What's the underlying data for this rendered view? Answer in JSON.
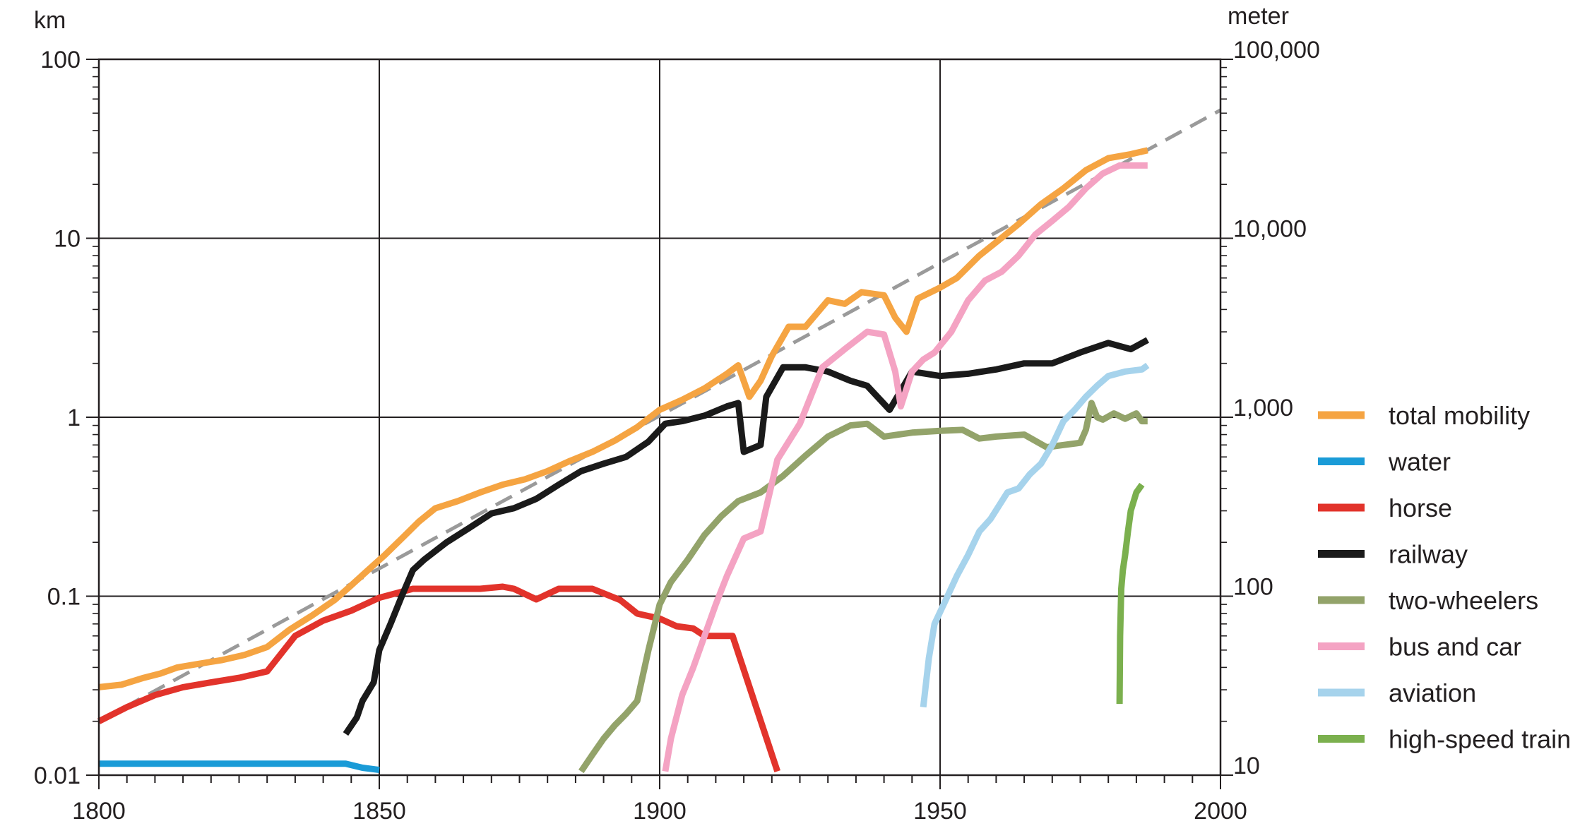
{
  "chart_data": {
    "type": "line",
    "xlim": [
      1800,
      2000
    ],
    "ylim": [
      0.01,
      100
    ],
    "y_scale": "log",
    "grid": true,
    "legend_position": "right",
    "left_axis_unit": "km",
    "right_axis_unit": "meter",
    "x_ticks": [
      1800,
      1850,
      1900,
      1950,
      2000
    ],
    "x_tick_labels": [
      "1800",
      "1850",
      "1900",
      "1950",
      "2000"
    ],
    "y_ticks": [
      0.01,
      0.1,
      1,
      10,
      100
    ],
    "y_tick_labels": [
      "0.01",
      "0.1",
      "1",
      "10",
      "100"
    ],
    "right_ticks": [
      10,
      100,
      1000,
      10000,
      100000
    ],
    "right_tick_labels": [
      "10",
      "100",
      "1,000",
      "10,000",
      "100,000"
    ],
    "trend": {
      "color": "#9a9a9a",
      "x": [
        1800,
        2000
      ],
      "y": [
        0.02,
        52
      ]
    },
    "series": [
      {
        "name": "total mobility",
        "color": "#f5a442",
        "x": [
          1800,
          1804,
          1808,
          1811,
          1814,
          1818,
          1822,
          1826,
          1830,
          1834,
          1838,
          1842,
          1845,
          1848,
          1851,
          1854,
          1857,
          1860,
          1864,
          1868,
          1872,
          1876,
          1880,
          1884,
          1888,
          1892,
          1896,
          1900,
          1904,
          1908,
          1912,
          1914,
          1916,
          1918,
          1920,
          1923,
          1926,
          1930,
          1933,
          1936,
          1940,
          1942,
          1944,
          1946,
          1950,
          1953,
          1957,
          1960,
          1964,
          1968,
          1972,
          1976,
          1980,
          1984,
          1987
        ],
        "y": [
          0.031,
          0.032,
          0.035,
          0.037,
          0.04,
          0.042,
          0.044,
          0.047,
          0.052,
          0.065,
          0.078,
          0.095,
          0.115,
          0.14,
          0.17,
          0.21,
          0.26,
          0.31,
          0.34,
          0.38,
          0.42,
          0.45,
          0.5,
          0.57,
          0.64,
          0.74,
          0.88,
          1.1,
          1.25,
          1.45,
          1.75,
          1.95,
          1.3,
          1.6,
          2.2,
          3.2,
          3.2,
          4.5,
          4.3,
          5.0,
          4.8,
          3.6,
          3.0,
          4.6,
          5.3,
          6.0,
          8.0,
          9.5,
          12.0,
          15.5,
          19.0,
          24.0,
          28.0,
          29.5,
          31.0
        ]
      },
      {
        "name": "water",
        "color": "#1a9bd7",
        "x": [
          1800,
          1810,
          1820,
          1830,
          1840,
          1844,
          1847,
          1850
        ],
        "y": [
          0.0116,
          0.0116,
          0.0116,
          0.0116,
          0.0116,
          0.0116,
          0.011,
          0.0107
        ]
      },
      {
        "name": "horse",
        "color": "#e2332b",
        "x": [
          1800,
          1805,
          1810,
          1815,
          1820,
          1825,
          1830,
          1835,
          1840,
          1845,
          1850,
          1856,
          1862,
          1868,
          1872,
          1874,
          1878,
          1882,
          1888,
          1893,
          1896,
          1900,
          1903,
          1906,
          1908,
          1913,
          1921
        ],
        "y": [
          0.02,
          0.024,
          0.028,
          0.031,
          0.033,
          0.035,
          0.038,
          0.06,
          0.073,
          0.083,
          0.098,
          0.11,
          0.11,
          0.11,
          0.113,
          0.11,
          0.096,
          0.11,
          0.11,
          0.095,
          0.08,
          0.075,
          0.068,
          0.066,
          0.06,
          0.06,
          0.0105
        ]
      },
      {
        "name": "railway",
        "color": "#1a1a1a",
        "x": [
          1844,
          1846,
          1847,
          1849,
          1850,
          1852,
          1854,
          1856,
          1858,
          1862,
          1866,
          1870,
          1874,
          1878,
          1882,
          1886,
          1890,
          1894,
          1898,
          1901,
          1904,
          1908,
          1912,
          1914,
          1915,
          1918,
          1919,
          1922,
          1926,
          1930,
          1934,
          1937,
          1941,
          1945,
          1950,
          1955,
          1960,
          1965,
          1970,
          1975,
          1980,
          1984,
          1987
        ],
        "y": [
          0.017,
          0.021,
          0.026,
          0.033,
          0.05,
          0.07,
          0.1,
          0.14,
          0.16,
          0.2,
          0.24,
          0.29,
          0.31,
          0.35,
          0.42,
          0.5,
          0.55,
          0.6,
          0.73,
          0.92,
          0.95,
          1.02,
          1.15,
          1.2,
          0.64,
          0.7,
          1.3,
          1.9,
          1.9,
          1.8,
          1.6,
          1.5,
          1.1,
          1.8,
          1.7,
          1.75,
          1.85,
          2.0,
          2.0,
          2.3,
          2.6,
          2.4,
          2.7
        ]
      },
      {
        "name": "two-wheelers",
        "color": "#93a36a",
        "x": [
          1886,
          1888,
          1890,
          1892,
          1894,
          1896,
          1898,
          1900,
          1902,
          1905,
          1908,
          1911,
          1914,
          1918,
          1922,
          1926,
          1930,
          1934,
          1937,
          1940,
          1945,
          1950,
          1954,
          1957,
          1960,
          1965,
          1969,
          1972,
          1975,
          1976,
          1977,
          1978,
          1979,
          1981,
          1983,
          1985,
          1986,
          1987
        ],
        "y": [
          0.0105,
          0.013,
          0.016,
          0.019,
          0.022,
          0.026,
          0.05,
          0.09,
          0.12,
          0.16,
          0.22,
          0.28,
          0.34,
          0.38,
          0.47,
          0.61,
          0.78,
          0.9,
          0.92,
          0.78,
          0.82,
          0.84,
          0.85,
          0.76,
          0.78,
          0.8,
          0.68,
          0.7,
          0.72,
          0.85,
          1.2,
          1.0,
          0.97,
          1.05,
          0.98,
          1.05,
          0.95,
          0.95
        ]
      },
      {
        "name": "bus and car",
        "color": "#f4a3c3",
        "x": [
          1901,
          1902,
          1904,
          1906,
          1908,
          1910,
          1912,
          1915,
          1918,
          1921,
          1925,
          1929,
          1933,
          1937,
          1940,
          1942,
          1943,
          1945,
          1947,
          1949,
          1952,
          1955,
          1958,
          1961,
          1964,
          1967,
          1970,
          1973,
          1976,
          1979,
          1982,
          1985,
          1987
        ],
        "y": [
          0.0105,
          0.016,
          0.028,
          0.04,
          0.06,
          0.09,
          0.13,
          0.21,
          0.23,
          0.58,
          0.92,
          1.9,
          2.4,
          3.0,
          2.9,
          1.8,
          1.15,
          1.8,
          2.1,
          2.3,
          3.0,
          4.5,
          5.8,
          6.5,
          8.0,
          10.5,
          12.5,
          15.0,
          19.0,
          23.0,
          25.5,
          25.5,
          25.5
        ]
      },
      {
        "name": "aviation",
        "color": "#a6d3ec",
        "x": [
          1947,
          1948,
          1949,
          1951,
          1953,
          1955,
          1957,
          1959,
          1962,
          1964,
          1966,
          1968,
          1970,
          1972,
          1974,
          1976,
          1978,
          1980,
          1983,
          1986,
          1987
        ],
        "y": [
          0.024,
          0.045,
          0.07,
          0.095,
          0.13,
          0.17,
          0.23,
          0.27,
          0.38,
          0.4,
          0.48,
          0.55,
          0.7,
          0.95,
          1.1,
          1.3,
          1.5,
          1.7,
          1.8,
          1.85,
          1.95
        ]
      },
      {
        "name": "high-speed train",
        "color": "#7bb04e",
        "x": [
          1982,
          1982.1,
          1982.3,
          1982.6,
          1983,
          1983.5,
          1984,
          1985,
          1986
        ],
        "y": [
          0.025,
          0.06,
          0.11,
          0.14,
          0.17,
          0.23,
          0.3,
          0.38,
          0.42
        ]
      }
    ]
  }
}
